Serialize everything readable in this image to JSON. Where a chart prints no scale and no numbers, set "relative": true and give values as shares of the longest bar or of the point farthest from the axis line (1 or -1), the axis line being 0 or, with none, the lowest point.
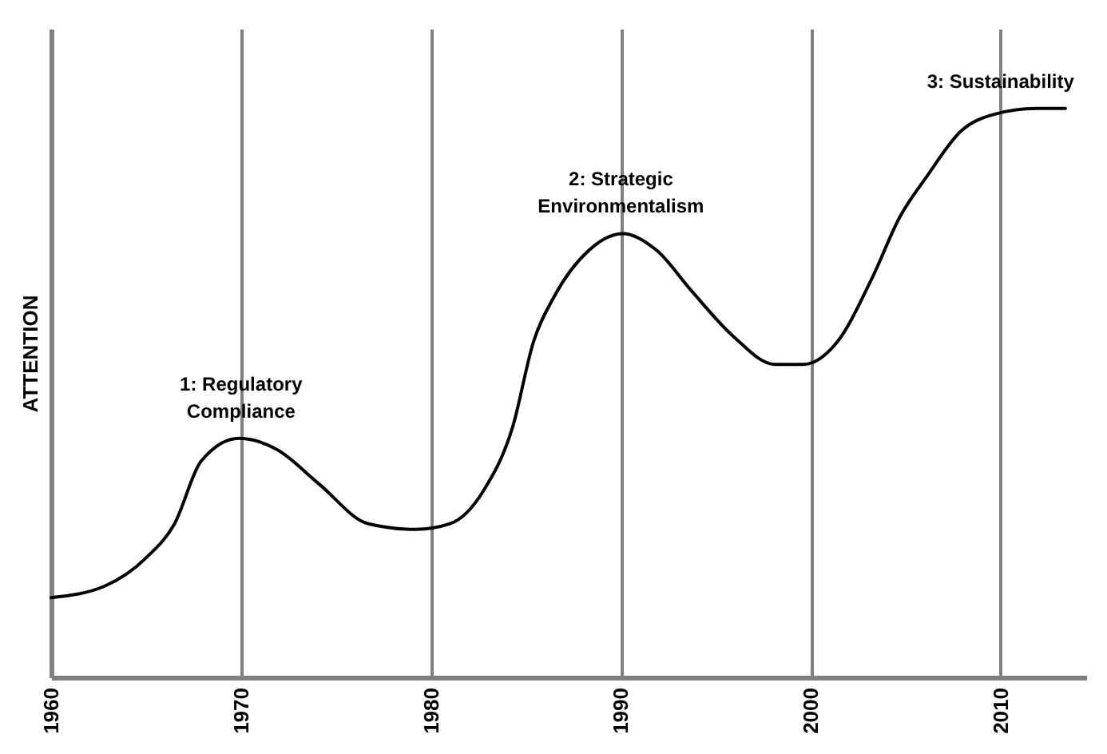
{
  "chart_data": {
    "type": "line",
    "ylabel": "ATTENTION",
    "relative": true,
    "grid": "x",
    "tick_labels": "x",
    "marker": "none",
    "line_style": "solid",
    "xlim": [
      1960,
      2014.5
    ],
    "xticks": [
      1960,
      1970,
      1980,
      1990,
      2000,
      2010
    ],
    "x": [
      1960,
      1962.8,
      1965,
      1966.5,
      1967.9,
      1969.9,
      1971.9,
      1974.1,
      1976.7,
      1979.2,
      1981,
      1982.8,
      1984.3,
      1985.4,
      1986.5,
      1988.3,
      1990.1,
      1991.9,
      1993.7,
      1995.9,
      1998.1,
      1999.6,
      2001.4,
      2003.2,
      2004.7,
      2006.1,
      2007.9,
      2009.7,
      2011.9,
      2013.4
    ],
    "series": [
      {
        "color": "#000000",
        "values": [
          0.14,
          0.16,
          0.21,
          0.27,
          0.38,
          0.42,
          0.4,
          0.34,
          0.27,
          0.26,
          0.27,
          0.33,
          0.44,
          0.59,
          0.67,
          0.75,
          0.78,
          0.75,
          0.68,
          0.6,
          0.55,
          0.55,
          0.59,
          0.7,
          0.81,
          0.88,
          0.96,
          0.99,
          1.0,
          1.0
        ]
      }
    ],
    "annotations": [
      {
        "text": "1: Regulatory Compliance",
        "x": 1970,
        "y": 0.42
      },
      {
        "text": "2: Strategic Environmentalism",
        "x": 1990,
        "y": 0.78
      },
      {
        "text": "3: Sustainability",
        "x": 2011.9,
        "y": 1.0
      }
    ]
  }
}
